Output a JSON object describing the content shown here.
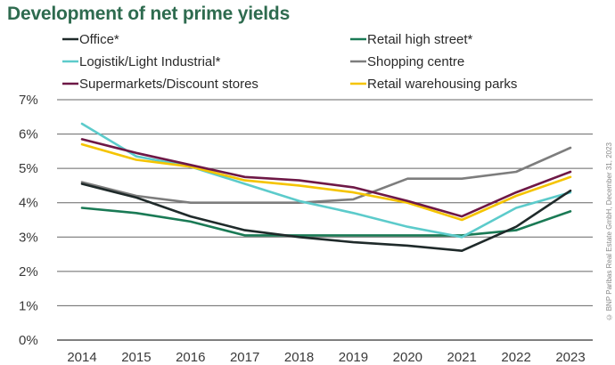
{
  "chart_data": {
    "type": "line",
    "title": "Development of net prime yields",
    "x": [
      "2014",
      "2015",
      "2016",
      "2017",
      "2018",
      "2019",
      "2020",
      "2021",
      "2022",
      "2023"
    ],
    "ylim": [
      0,
      7
    ],
    "y_ticks": [
      "0%",
      "1%",
      "2%",
      "3%",
      "4%",
      "5%",
      "6%",
      "7%"
    ],
    "grid": true,
    "legend_position": "top",
    "series": [
      {
        "name": "Office*",
        "color": "#1f2a2a",
        "values": [
          4.55,
          4.15,
          3.6,
          3.2,
          3.0,
          2.85,
          2.75,
          2.6,
          3.3,
          4.35
        ]
      },
      {
        "name": "Retail high street*",
        "color": "#1a7a55",
        "values": [
          3.85,
          3.7,
          3.45,
          3.05,
          3.05,
          3.05,
          3.05,
          3.05,
          3.2,
          3.75
        ]
      },
      {
        "name": "Logistik/Light Industrial*",
        "color": "#5ccbcb",
        "values": [
          6.3,
          5.35,
          5.05,
          4.55,
          4.05,
          3.7,
          3.3,
          3.0,
          3.85,
          4.3
        ]
      },
      {
        "name": "Shopping centre",
        "color": "#7d7d7d",
        "values": [
          4.6,
          4.2,
          4.0,
          4.0,
          4.0,
          4.1,
          4.7,
          4.7,
          4.9,
          5.6
        ]
      },
      {
        "name": "Supermarkets/Discount stores",
        "color": "#6e1846",
        "values": [
          5.85,
          5.45,
          5.1,
          4.75,
          4.65,
          4.45,
          4.05,
          3.6,
          4.3,
          4.9
        ]
      },
      {
        "name": "Retail warehousing parks",
        "color": "#f5c400",
        "values": [
          5.7,
          5.25,
          5.05,
          4.65,
          4.5,
          4.3,
          4.0,
          3.5,
          4.2,
          4.75
        ]
      }
    ],
    "source": "© BNP Paribas Real Estate GmbH, December 31, 2023"
  }
}
